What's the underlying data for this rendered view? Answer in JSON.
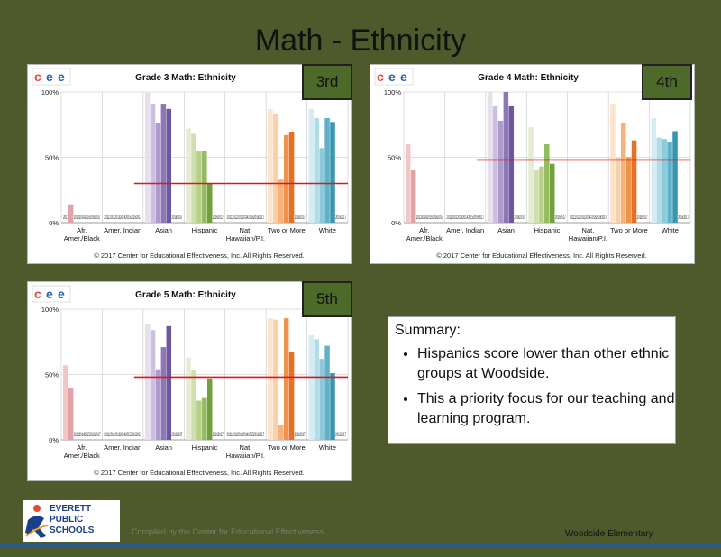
{
  "slide": {
    "title": "Math - Ethnicity",
    "compiled_by": "Compiled by the Center for Educational Effectiveness",
    "school": "Woodside Elementary",
    "logo_line1": "EVERETT",
    "logo_line2": "PUBLIC",
    "logo_line3": "SCHOOLS"
  },
  "summary": {
    "heading": "Summary:",
    "bullets": [
      "Hispanics score lower than other ethnic groups at Woodside.",
      "This a priority focus for our teaching and learning program."
    ]
  },
  "chart_data": [
    {
      "type": "bar",
      "badge": "3rd",
      "title": "Grade 3 Math: Ethnicity",
      "copyright": "© 2017 Center for Educational Effectiveness, Inc. All Rights Reserved.",
      "yticks": [
        "0%",
        "50%",
        "100%"
      ],
      "ylim": [
        0,
        100
      ],
      "categories": [
        "Afr. Amer./Black",
        "Amer. Indian",
        "Asian",
        "Hispanic",
        "Nat. Hawaiian/P.I.",
        "Two or More",
        "White"
      ],
      "years": [
        "2011",
        "2012",
        "2013",
        "2014",
        "2015",
        "2016",
        "2017"
      ],
      "values": [
        [
          null,
          14,
          null,
          null,
          null,
          null,
          null
        ],
        [
          null,
          null,
          null,
          null,
          null,
          null,
          null
        ],
        [
          100,
          91,
          76,
          91,
          87,
          null,
          null
        ],
        [
          72,
          68,
          55,
          55,
          30,
          null,
          null
        ],
        [
          null,
          null,
          null,
          null,
          null,
          null,
          null
        ],
        [
          87,
          83,
          33,
          67,
          69,
          null,
          null
        ],
        [
          87,
          80,
          57,
          80,
          77,
          null,
          null
        ]
      ],
      "reference_line": 30,
      "colors": [
        [
          "#f2c6c6",
          "#e3a3a6",
          "#d98c92",
          "#c9717b",
          "#b85a66",
          "#a8485a",
          "#983a4e"
        ],
        [
          "#ece7ee",
          "#ddd6e0",
          "#cdc5d3",
          "#bdb4c6",
          "#ada3b9",
          "#9d92ac",
          "#8d819f"
        ],
        [
          "#e6e0ee",
          "#cbbfe0",
          "#ad9bcc",
          "#8e77b6",
          "#6d579e",
          "#5a4489",
          "#4a3674"
        ],
        [
          "#e4ecd2",
          "#cfe0ae",
          "#b6d08a",
          "#93bb5f",
          "#72a03f",
          "#5d8a30",
          "#4a7424"
        ],
        [
          "#eeeeee",
          "#dddddd",
          "#cccccc",
          "#bbbbbb",
          "#aaaaaa",
          "#999999",
          "#888888"
        ],
        [
          "#fde3cc",
          "#fbcfa8",
          "#f6b27a",
          "#f0914c",
          "#e67026",
          "#cf5e1b",
          "#b84e14"
        ],
        [
          "#d6ecf2",
          "#b2dce8",
          "#8bc9db",
          "#5fb1c9",
          "#3896b1",
          "#2a7d96",
          "#1f667c"
        ]
      ]
    },
    {
      "type": "bar",
      "badge": "4th",
      "title": "Grade 4 Math: Ethnicity",
      "copyright": "© 2017 Center for Educational Effectiveness, Inc. All Rights Reserved.",
      "yticks": [
        "0%",
        "50%",
        "100%"
      ],
      "ylim": [
        0,
        100
      ],
      "categories": [
        "Afr. Amer./Black",
        "Amer. Indian",
        "Asian",
        "Hispanic",
        "Nat. Hawaiian/P.I.",
        "Two or More",
        "White"
      ],
      "years": [
        "2011",
        "2012",
        "2013",
        "2014",
        "2015",
        "2016",
        "2017"
      ],
      "values": [
        [
          60,
          40,
          null,
          null,
          null,
          null,
          null
        ],
        [
          null,
          null,
          null,
          null,
          null,
          null,
          null
        ],
        [
          100,
          89,
          78,
          100,
          89,
          null,
          null
        ],
        [
          73,
          40,
          43,
          60,
          45,
          null,
          null
        ],
        [
          null,
          null,
          null,
          null,
          null,
          null,
          null
        ],
        [
          91,
          50,
          76,
          50,
          63,
          null,
          null
        ],
        [
          80,
          65,
          64,
          62,
          70,
          null,
          null
        ]
      ],
      "reference_line": 48,
      "colors": [
        [
          "#f2c6c6",
          "#e3a3a6",
          "#d98c92",
          "#c9717b",
          "#b85a66",
          "#a8485a",
          "#983a4e"
        ],
        [
          "#ece7ee",
          "#ddd6e0",
          "#cdc5d3",
          "#bdb4c6",
          "#ada3b9",
          "#9d92ac",
          "#8d819f"
        ],
        [
          "#e6e0ee",
          "#cbbfe0",
          "#ad9bcc",
          "#8e77b6",
          "#6d579e",
          "#5a4489",
          "#4a3674"
        ],
        [
          "#e4ecd2",
          "#cfe0ae",
          "#b6d08a",
          "#93bb5f",
          "#72a03f",
          "#5d8a30",
          "#4a7424"
        ],
        [
          "#eeeeee",
          "#dddddd",
          "#cccccc",
          "#bbbbbb",
          "#aaaaaa",
          "#999999",
          "#888888"
        ],
        [
          "#fde3cc",
          "#fbcfa8",
          "#f6b27a",
          "#f0914c",
          "#e67026",
          "#cf5e1b",
          "#b84e14"
        ],
        [
          "#d6ecf2",
          "#b2dce8",
          "#8bc9db",
          "#5fb1c9",
          "#3896b1",
          "#2a7d96",
          "#1f667c"
        ]
      ]
    },
    {
      "type": "bar",
      "badge": "5th",
      "title": "Grade 5 Math: Ethnicity",
      "copyright": "© 2017 Center for Educational Effectiveness, Inc. All Rights Reserved.",
      "yticks": [
        "0%",
        "50%",
        "100%"
      ],
      "ylim": [
        0,
        100
      ],
      "categories": [
        "Afr. Amer./Black",
        "Amer. Indian",
        "Asian",
        "Hispanic",
        "Nat. Hawaiian/P.I.",
        "Two or More",
        "White"
      ],
      "years": [
        "2011",
        "2012",
        "2013",
        "2014",
        "2015",
        "2016",
        "2017"
      ],
      "values": [
        [
          57,
          40,
          null,
          null,
          null,
          null,
          null
        ],
        [
          null,
          null,
          null,
          null,
          null,
          null,
          null
        ],
        [
          89,
          84,
          54,
          71,
          87,
          null,
          null
        ],
        [
          63,
          53,
          30,
          32,
          47,
          null,
          null
        ],
        [
          null,
          null,
          null,
          null,
          null,
          null,
          null
        ],
        [
          93,
          92,
          11,
          93,
          67,
          null,
          null
        ],
        [
          80,
          77,
          62,
          72,
          51,
          null,
          null
        ]
      ],
      "reference_line": 48,
      "colors": [
        [
          "#f2c6c6",
          "#e3a3a6",
          "#d98c92",
          "#c9717b",
          "#b85a66",
          "#a8485a",
          "#983a4e"
        ],
        [
          "#ece7ee",
          "#ddd6e0",
          "#cdc5d3",
          "#bdb4c6",
          "#ada3b9",
          "#9d92ac",
          "#8d819f"
        ],
        [
          "#e6e0ee",
          "#cbbfe0",
          "#ad9bcc",
          "#8e77b6",
          "#6d579e",
          "#5a4489",
          "#4a3674"
        ],
        [
          "#e4ecd2",
          "#cfe0ae",
          "#b6d08a",
          "#93bb5f",
          "#72a03f",
          "#5d8a30",
          "#4a7424"
        ],
        [
          "#eeeeee",
          "#dddddd",
          "#cccccc",
          "#bbbbbb",
          "#aaaaaa",
          "#999999",
          "#888888"
        ],
        [
          "#fde3cc",
          "#fbcfa8",
          "#f6b27a",
          "#f0914c",
          "#e67026",
          "#cf5e1b",
          "#b84e14"
        ],
        [
          "#d6ecf2",
          "#b2dce8",
          "#8bc9db",
          "#5fb1c9",
          "#3896b1",
          "#2a7d96",
          "#1f667c"
        ]
      ]
    }
  ],
  "colors": {
    "background": "#4e5a2b",
    "badge": "#4e6a2a",
    "reference_line": "#e0141c",
    "cee_c": "#e8473c",
    "cee_e": "#2a62b0"
  }
}
